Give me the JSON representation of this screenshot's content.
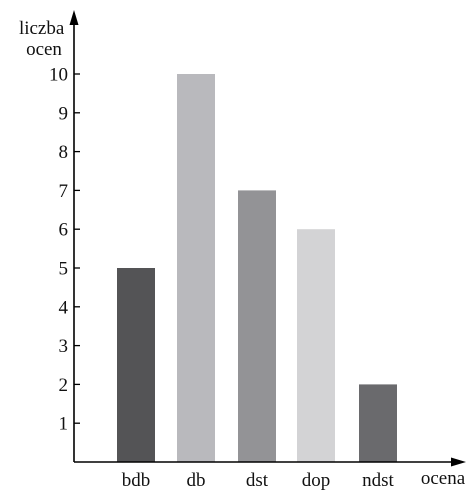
{
  "chart_data": {
    "type": "bar",
    "title": "",
    "xlabel": "ocena",
    "ylabel_lines": [
      "liczba",
      "ocen"
    ],
    "categories": [
      "bdb",
      "db",
      "dst",
      "dop",
      "ndst"
    ],
    "values": [
      5,
      10,
      7,
      6,
      2
    ],
    "yticks": [
      1,
      2,
      3,
      4,
      5,
      6,
      7,
      8,
      9,
      10
    ],
    "ylim": [
      0,
      10
    ],
    "grid": false,
    "legend": "none",
    "bar_colors": [
      "#545456",
      "#b9b9bd",
      "#939396",
      "#d3d3d5",
      "#6a6a6d"
    ]
  }
}
